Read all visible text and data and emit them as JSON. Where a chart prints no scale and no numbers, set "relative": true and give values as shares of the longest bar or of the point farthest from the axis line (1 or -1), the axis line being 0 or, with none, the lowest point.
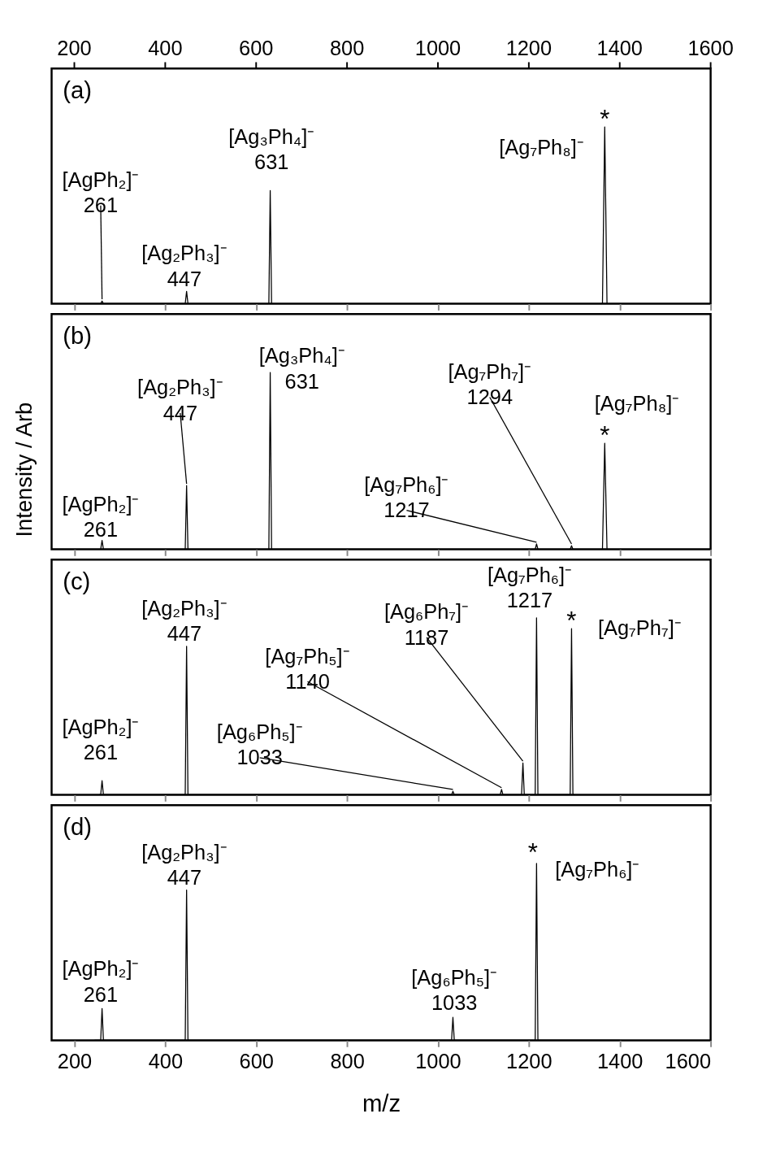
{
  "chart_data": [
    {
      "type": "line",
      "relative": true,
      "tick_labels": false,
      "xlim": [
        150,
        1600
      ],
      "xticks": [
        200,
        400,
        600,
        800,
        1000,
        1200,
        1400,
        1600
      ],
      "x2lim": [
        150,
        1600
      ],
      "x2ticks": [
        200,
        400,
        600,
        800,
        1000,
        1200,
        1400,
        1600
      ],
      "series": [
        {
          "color": "#000000",
          "x": [
            230,
            258,
            261,
            264,
            444,
            447,
            450,
            628,
            631,
            634,
            1362,
            1367,
            1372,
            1400
          ],
          "values": [
            0,
            0,
            0.015,
            0,
            0,
            0.07,
            0,
            0,
            0.64,
            0,
            0,
            1,
            0,
            0
          ]
        }
      ],
      "annotations": [
        "(a)",
        {
          "text": "[AgPh₂]⁻\n261",
          "x": 261,
          "y": 0.015
        },
        {
          "text": "[Ag₂Ph₃]⁻\n447",
          "x": 447,
          "y": 0.07
        },
        {
          "text": "[Ag₃Ph₄]⁻\n631",
          "x": 631,
          "y": 0.64
        },
        {
          "text": "[Ag₇Ph₈]⁻",
          "x": 1367,
          "y": 1
        },
        {
          "text": "*",
          "x": 1367,
          "y": 1
        }
      ]
    },
    {
      "type": "line",
      "relative": true,
      "tick_labels": false,
      "xlim": [
        150,
        1600
      ],
      "xticks": [
        200,
        400,
        600,
        800,
        1000,
        1200,
        1400,
        1600
      ],
      "ylabel": "Intensity / Arb",
      "series": [
        {
          "color": "#000000",
          "x": [
            230,
            258,
            261,
            264,
            444,
            447,
            450,
            628,
            631,
            634,
            1214,
            1217,
            1220,
            1291,
            1294,
            1297,
            1362,
            1367,
            1372,
            1400
          ],
          "values": [
            0,
            0,
            0.05,
            0,
            0,
            0.36,
            0,
            0,
            1,
            0,
            0,
            0.03,
            0,
            0,
            0.02,
            0,
            0,
            0.6,
            0,
            0
          ]
        }
      ],
      "annotations": [
        "(b)",
        {
          "text": "[AgPh₂]⁻\n261",
          "x": 261,
          "y": 0.05
        },
        {
          "text": "[Ag₂Ph₃]⁻\n447",
          "x": 447,
          "y": 0.36
        },
        {
          "text": "[Ag₃Ph₄]⁻\n631",
          "x": 631,
          "y": 1
        },
        {
          "text": "[Ag₇Ph₆]⁻\n1217",
          "x": 1217,
          "y": 0.03
        },
        {
          "text": "[Ag₇Ph₇]⁻\n1294",
          "x": 1294,
          "y": 0.02
        },
        {
          "text": "[Ag₇Ph₈]⁻",
          "x": 1367,
          "y": 0.6
        },
        {
          "text": "*",
          "x": 1367,
          "y": 0.6
        }
      ]
    },
    {
      "type": "line",
      "relative": true,
      "tick_labels": false,
      "xlim": [
        150,
        1600
      ],
      "xticks": [
        200,
        400,
        600,
        800,
        1000,
        1200,
        1400,
        1600
      ],
      "series": [
        {
          "color": "#000000",
          "x": [
            255,
            258,
            261,
            264,
            444,
            447,
            450,
            1030,
            1033,
            1036,
            1137,
            1140,
            1143,
            1184,
            1187,
            1190,
            1214,
            1217,
            1220,
            1291,
            1294,
            1297,
            1300
          ],
          "values": [
            0,
            0,
            0.08,
            0,
            0,
            0.84,
            0,
            0,
            0.02,
            0,
            0,
            0.03,
            0,
            0,
            0.18,
            0,
            0,
            1,
            0,
            0,
            0.94,
            0,
            0
          ]
        }
      ],
      "annotations": [
        "(c)",
        {
          "text": "[AgPh₂]⁻\n261",
          "x": 261,
          "y": 0.08
        },
        {
          "text": "[Ag₂Ph₃]⁻\n447",
          "x": 447,
          "y": 0.84
        },
        {
          "text": "[Ag₆Ph₅]⁻\n1033",
          "x": 1033,
          "y": 0.02
        },
        {
          "text": "[Ag₇Ph₅]⁻\n1140",
          "x": 1140,
          "y": 0.03
        },
        {
          "text": "[Ag₆Ph₇]⁻\n1187",
          "x": 1187,
          "y": 0.18
        },
        {
          "text": "[Ag₇Ph₆]⁻\n1217",
          "x": 1217,
          "y": 1
        },
        {
          "text": "[Ag₇Ph₇]⁻",
          "x": 1294,
          "y": 0.94
        },
        {
          "text": "*",
          "x": 1294,
          "y": 0.94
        }
      ]
    },
    {
      "type": "line",
      "relative": true,
      "tick_labels": "x",
      "xlim": [
        150,
        1600
      ],
      "xticks": [
        200,
        400,
        600,
        800,
        1000,
        1200,
        1400,
        1600
      ],
      "xlabel": "m/z",
      "series": [
        {
          "color": "#000000",
          "x": [
            245,
            258,
            261,
            264,
            444,
            447,
            450,
            1030,
            1033,
            1036,
            1214,
            1217,
            1220,
            1400
          ],
          "values": [
            0,
            0,
            0.18,
            0,
            0,
            0.85,
            0,
            0,
            0.13,
            0,
            0,
            1,
            0,
            0
          ]
        }
      ],
      "annotations": [
        "(d)",
        {
          "text": "[AgPh₂]⁻\n261",
          "x": 261,
          "y": 0.18
        },
        {
          "text": "[Ag₂Ph₃]⁻\n447",
          "x": 447,
          "y": 0.85
        },
        {
          "text": "[Ag₆Ph₅]⁻\n1033",
          "x": 1033,
          "y": 0.13
        },
        {
          "text": "[Ag₇Ph₆]⁻",
          "x": 1217,
          "y": 1
        },
        {
          "text": "*",
          "x": 1217,
          "y": 1
        }
      ]
    }
  ]
}
